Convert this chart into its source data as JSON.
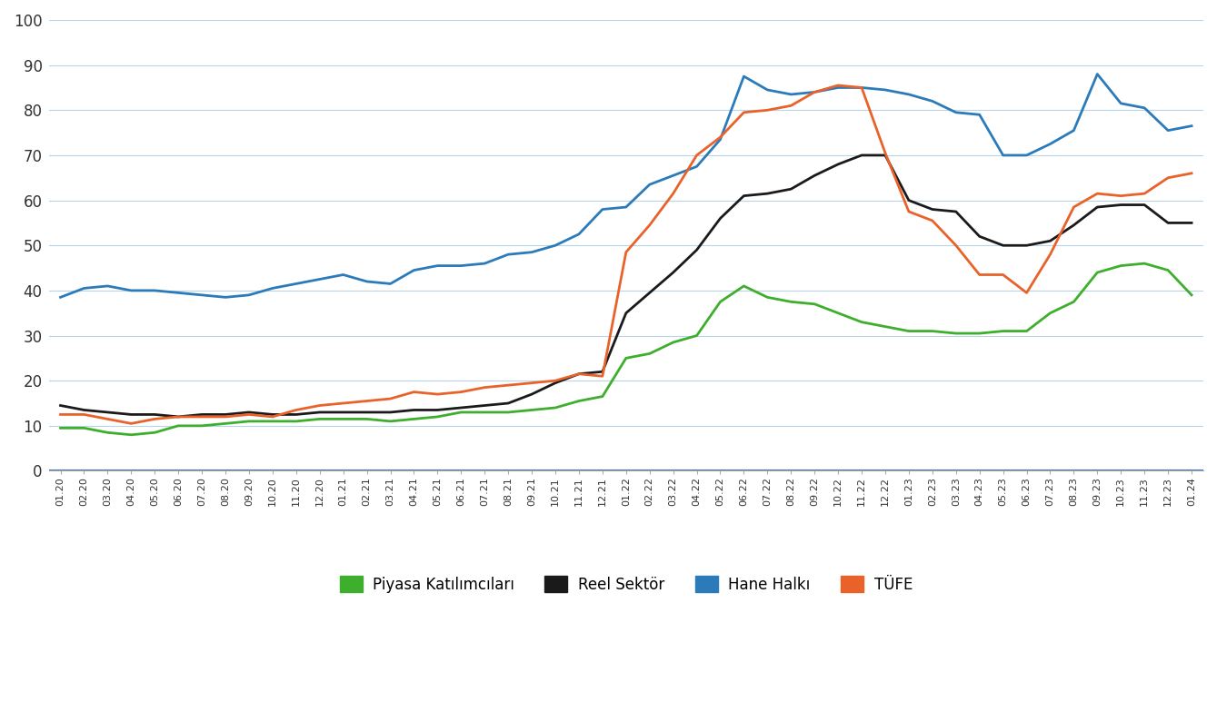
{
  "title": "",
  "xlabel": "",
  "ylabel": "",
  "ylim": [
    0,
    100
  ],
  "yticks": [
    0,
    10,
    20,
    30,
    40,
    50,
    60,
    70,
    80,
    90,
    100
  ],
  "legend_labels": [
    "Piyasa Katılımcıları",
    "Reel Sektör",
    "Hane Halkı",
    "TÜFE"
  ],
  "colors": {
    "Piyasa": "#3daf2c",
    "Reel": "#1a1a1a",
    "Hane": "#2b7bba",
    "TUFE": "#e8622a"
  },
  "x_labels": [
    "01.20",
    "02.20",
    "03.20",
    "04.20",
    "05.20",
    "06.20",
    "07.20",
    "08.20",
    "09.20",
    "10.20",
    "11.20",
    "12.20",
    "01.21",
    "02.21",
    "03.21",
    "04.21",
    "05.21",
    "06.21",
    "07.21",
    "08.21",
    "09.21",
    "10.21",
    "11.21",
    "12.21",
    "01.22",
    "02.22",
    "03.22",
    "04.22",
    "05.22",
    "06.22",
    "07.22",
    "08.22",
    "09.22",
    "10.22",
    "11.22",
    "12.22",
    "01.23",
    "02.23",
    "03.23",
    "04.23",
    "05.23",
    "06.23",
    "07.23",
    "08.23",
    "09.23",
    "10.23",
    "11.23",
    "12.23",
    "01.24"
  ],
  "piyasa": [
    9.5,
    9.5,
    8.5,
    8.0,
    8.5,
    10.0,
    10.0,
    10.5,
    11.0,
    11.0,
    11.0,
    11.5,
    11.5,
    11.5,
    11.0,
    11.5,
    12.0,
    13.0,
    13.0,
    13.0,
    13.5,
    14.0,
    15.5,
    16.5,
    25.0,
    26.0,
    28.5,
    30.0,
    37.5,
    41.0,
    38.5,
    37.5,
    37.0,
    35.0,
    33.0,
    32.0,
    31.0,
    31.0,
    30.5,
    30.5,
    31.0,
    31.0,
    35.0,
    37.5,
    44.0,
    45.5,
    46.0,
    44.5,
    39.0
  ],
  "reel": [
    14.5,
    13.5,
    13.0,
    12.5,
    12.5,
    12.0,
    12.5,
    12.5,
    13.0,
    12.5,
    12.5,
    13.0,
    13.0,
    13.0,
    13.0,
    13.5,
    13.5,
    14.0,
    14.5,
    15.0,
    17.0,
    19.5,
    21.5,
    22.0,
    35.0,
    39.5,
    44.0,
    49.0,
    56.0,
    61.0,
    61.5,
    62.5,
    65.5,
    68.0,
    70.0,
    70.0,
    60.0,
    58.0,
    57.5,
    52.0,
    50.0,
    50.0,
    51.0,
    54.5,
    58.5,
    59.0,
    59.0,
    55.0,
    55.0
  ],
  "hane": [
    38.5,
    40.5,
    41.0,
    40.0,
    40.0,
    39.5,
    39.0,
    38.5,
    39.0,
    40.5,
    41.5,
    42.5,
    43.5,
    42.0,
    41.5,
    44.5,
    45.5,
    45.5,
    46.0,
    48.0,
    48.5,
    50.0,
    52.5,
    58.0,
    58.5,
    63.5,
    65.5,
    67.5,
    73.5,
    87.5,
    84.5,
    83.5,
    84.0,
    85.0,
    85.0,
    84.5,
    83.5,
    82.0,
    79.5,
    79.0,
    70.0,
    70.0,
    72.5,
    75.5,
    88.0,
    81.5,
    80.5,
    75.5,
    76.5
  ],
  "tufe": [
    12.5,
    12.5,
    11.5,
    10.5,
    11.5,
    12.0,
    12.0,
    12.0,
    12.5,
    12.0,
    13.5,
    14.5,
    15.0,
    15.5,
    16.0,
    17.5,
    17.0,
    17.5,
    18.5,
    19.0,
    19.5,
    20.0,
    21.5,
    21.0,
    48.5,
    54.5,
    61.5,
    70.0,
    74.0,
    79.5,
    80.0,
    81.0,
    84.0,
    85.5,
    85.0,
    70.5,
    57.5,
    55.5,
    50.0,
    43.5,
    43.5,
    39.5,
    48.0,
    58.5,
    61.5,
    61.0,
    61.5,
    65.0,
    66.0
  ]
}
